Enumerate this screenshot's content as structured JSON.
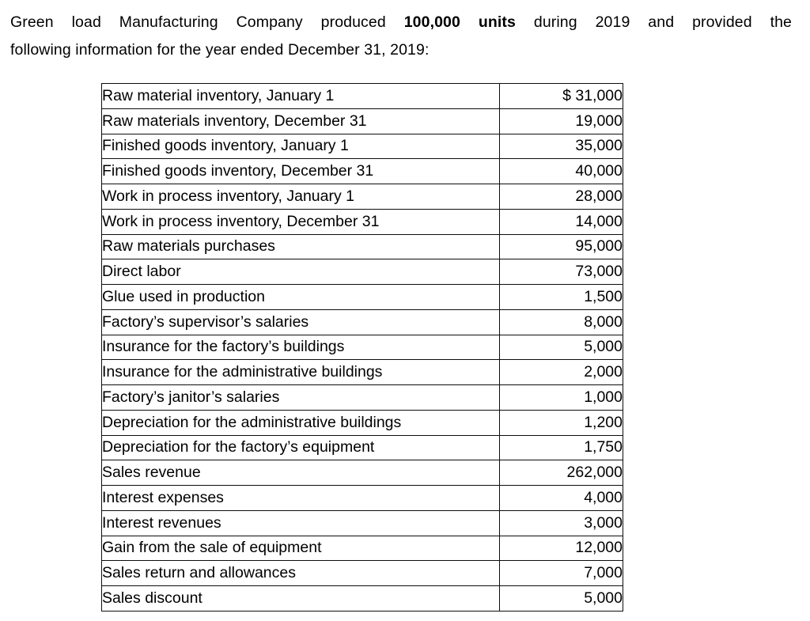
{
  "heading": {
    "line1_prefix": "Green load Manufacturing Company produced",
    "line1_bold": "100,000 units",
    "line1_suffix": "during 2019 and provided the",
    "line2": "following information for the year ended December 31, 2019:"
  },
  "table": {
    "rows": [
      {
        "label": "Raw material inventory, January 1",
        "value": "$ 31,000"
      },
      {
        "label": "Raw materials inventory, December 31",
        "value": "19,000"
      },
      {
        "label": "Finished goods inventory, January 1",
        "value": "35,000"
      },
      {
        "label": "Finished goods inventory, December 31",
        "value": "40,000"
      },
      {
        "label": "Work in process inventory, January 1",
        "value": "28,000"
      },
      {
        "label": "Work in process inventory, December 31",
        "value": "14,000"
      },
      {
        "label": "Raw materials purchases",
        "value": "95,000"
      },
      {
        "label": "Direct labor",
        "value": "73,000"
      },
      {
        "label": "Glue used in production",
        "value": "1,500"
      },
      {
        "label": "Factory’s supervisor’s salaries",
        "value": "8,000"
      },
      {
        "label": "Insurance for the factory’s buildings",
        "value": "5,000"
      },
      {
        "label": "Insurance for the administrative buildings",
        "value": "2,000"
      },
      {
        "label": "Factory’s janitor’s salaries",
        "value": "1,000"
      },
      {
        "label": "Depreciation for the administrative buildings",
        "value": "1,200"
      },
      {
        "label": "Depreciation for the factory’s equipment",
        "value": "1,750"
      },
      {
        "label": "Sales revenue",
        "value": "262,000"
      },
      {
        "label": "Interest expenses",
        "value": "4,000"
      },
      {
        "label": "Interest revenues",
        "value": "3,000"
      },
      {
        "label": "Gain from the sale of equipment",
        "value": "12,000"
      },
      {
        "label": "Sales return and allowances",
        "value": "7,000"
      },
      {
        "label": "Sales discount",
        "value": "5,000"
      }
    ]
  },
  "colors": {
    "text": "#000000",
    "border": "#0d0d0d",
    "background": "#ffffff"
  }
}
